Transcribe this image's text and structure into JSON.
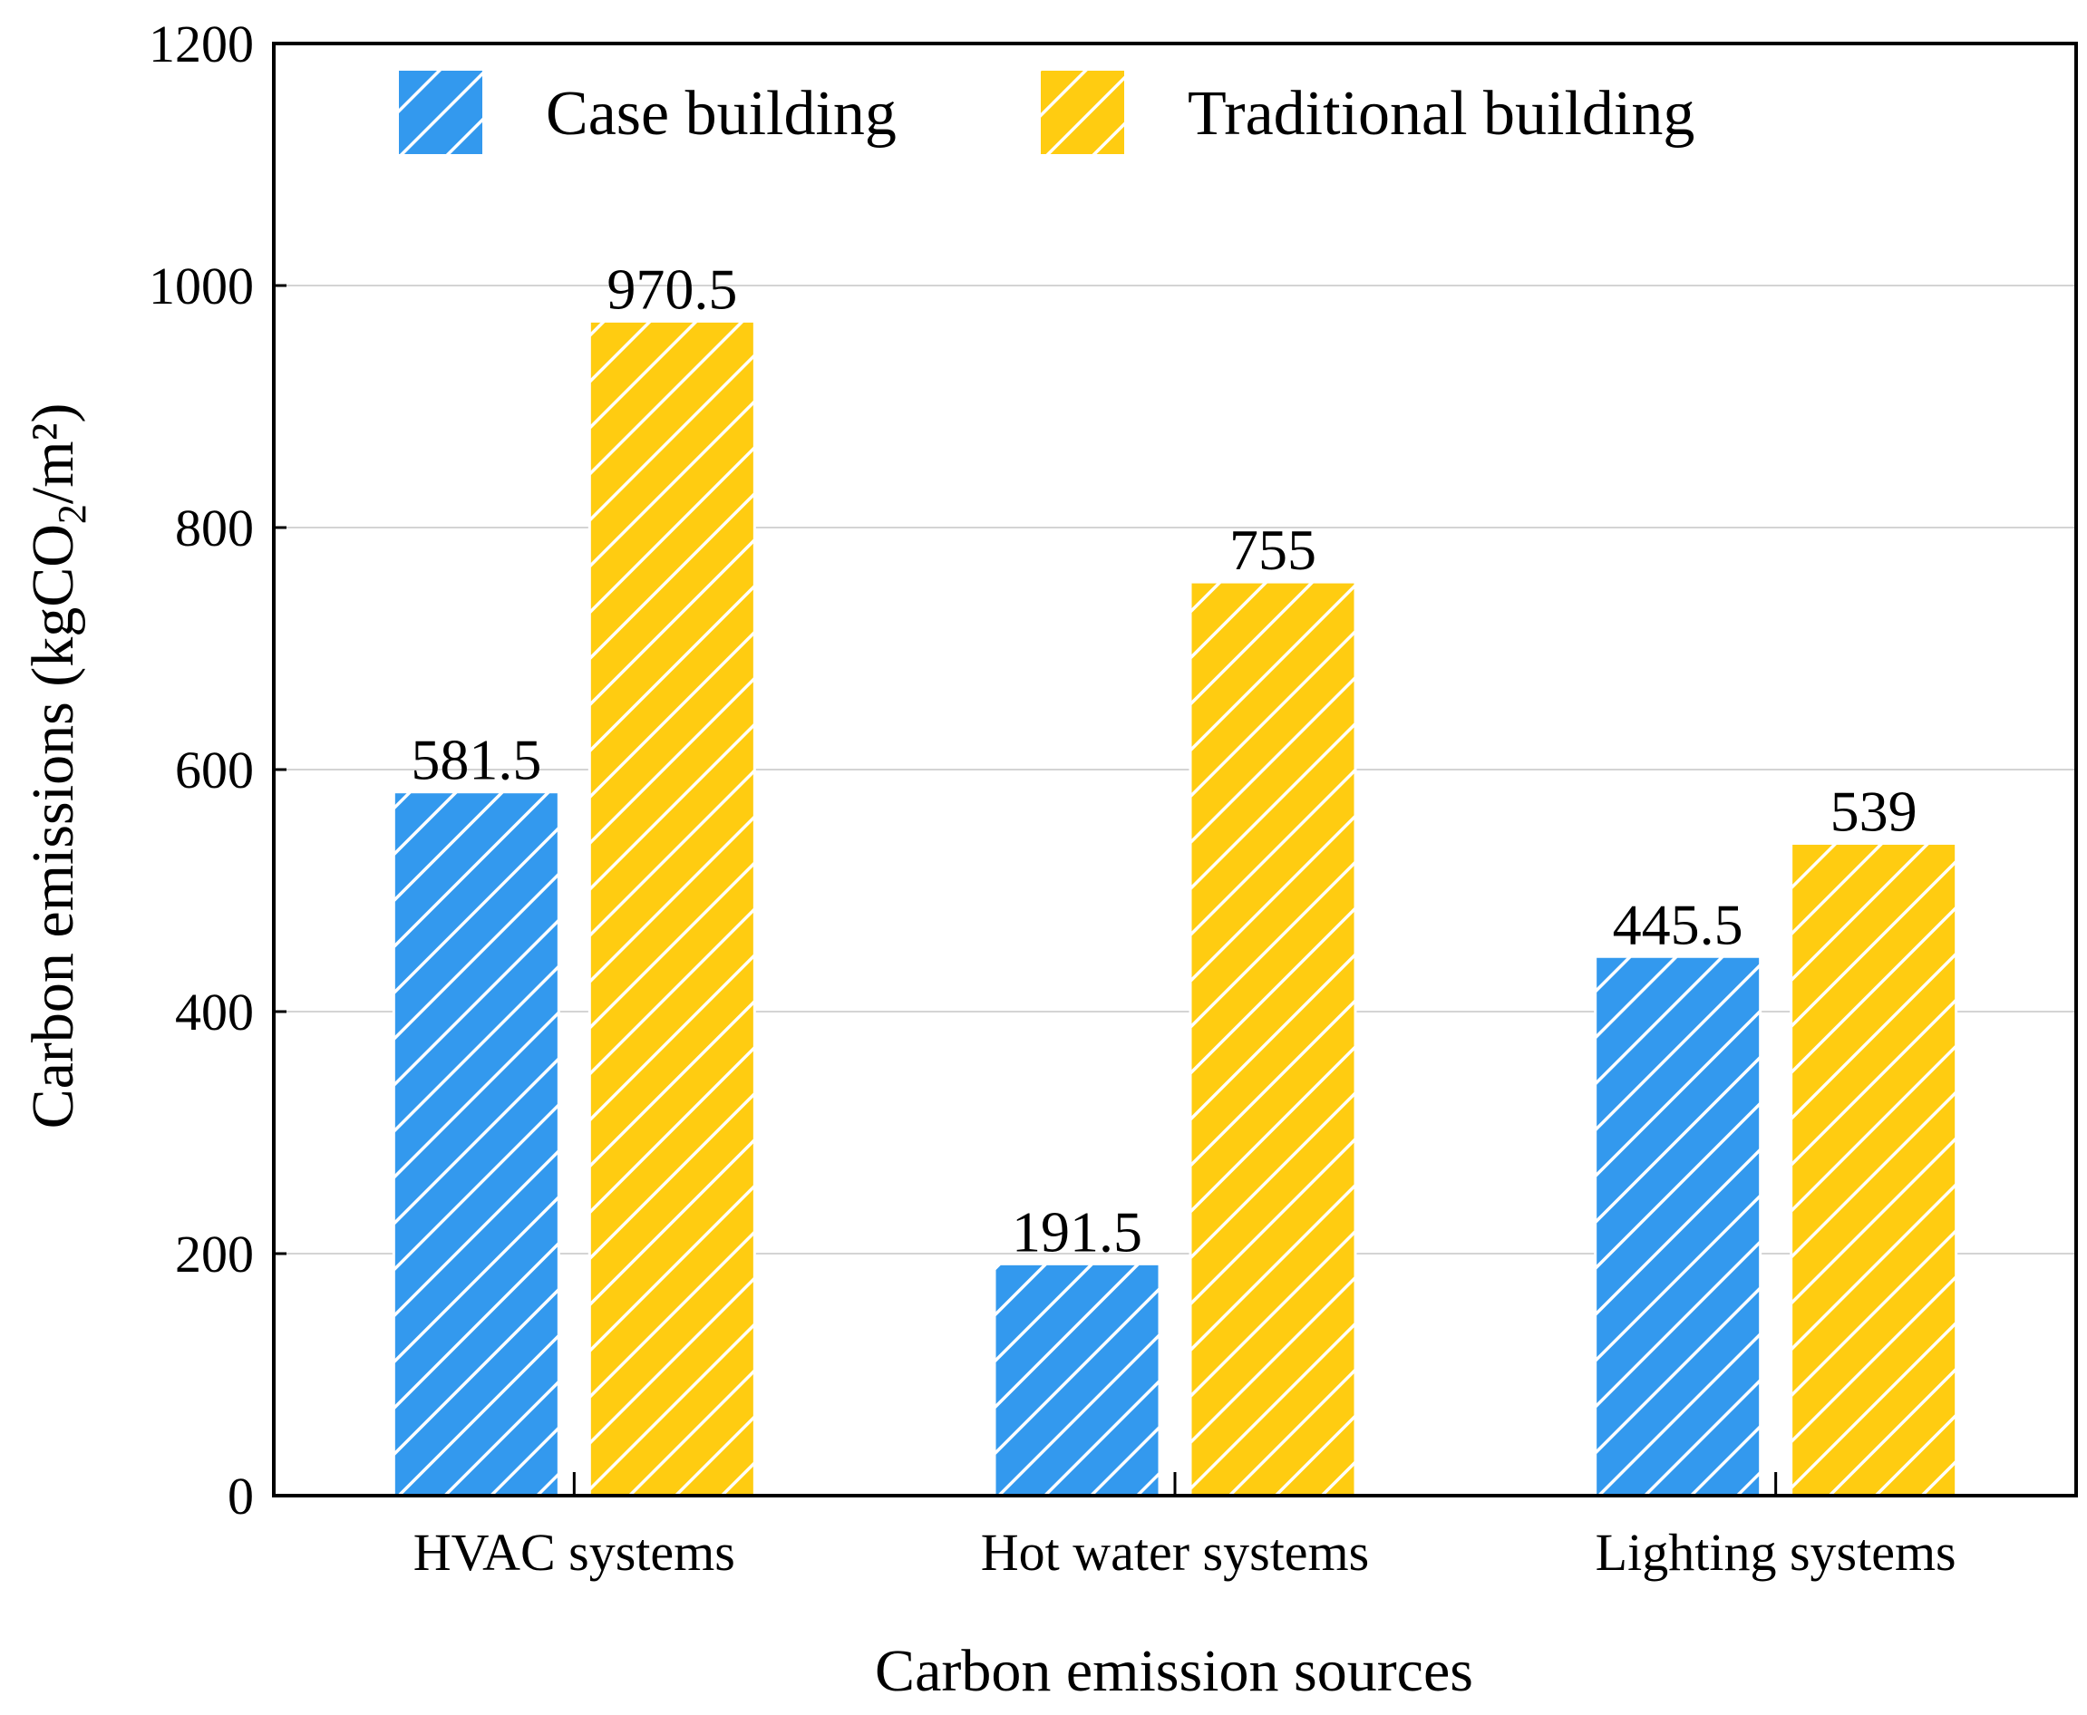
{
  "chart_data": {
    "type": "bar",
    "title": "",
    "xlabel": "Carbon emission sources",
    "ylabel": {
      "prefix": "Carbon emissions (kgCO",
      "subscript": "2",
      "suffix": "/m²)"
    },
    "categories": [
      "HVAC systems",
      "Hot water systems",
      "Lighting systems"
    ],
    "series": [
      {
        "name": "Case building",
        "values": [
          581.5,
          191.5,
          445.5
        ],
        "labels": [
          "581.5",
          "191.5",
          "445.5"
        ],
        "color": "#3399ee"
      },
      {
        "name": "Traditional building",
        "values": [
          970.5,
          755,
          539
        ],
        "labels": [
          "970.5",
          "755",
          "539"
        ],
        "color": "#ffcc11"
      }
    ],
    "ylim": [
      0,
      1200
    ],
    "yticks": [
      0,
      200,
      400,
      600,
      800,
      1000,
      1200
    ],
    "grid": true,
    "hatch": "diagonal",
    "legend_position": "top"
  }
}
